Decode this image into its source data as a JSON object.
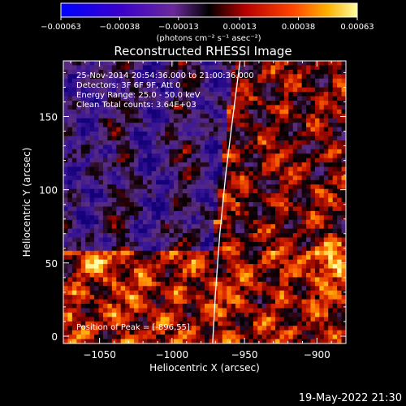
{
  "chart_data": {
    "type": "heatmap",
    "title": "Reconstructed RHESSI Image",
    "xlabel": "Heliocentric X (arcsec)",
    "ylabel": "Heliocentric Y (arcsec)",
    "xlim": [
      -1075,
      -880
    ],
    "ylim": [
      -5,
      188
    ],
    "xticks": [
      {
        "value": -1050,
        "label": "−1050"
      },
      {
        "value": -1000,
        "label": "−1000"
      },
      {
        "value": -950,
        "label": "−950"
      },
      {
        "value": -900,
        "label": "−900"
      }
    ],
    "yticks": [
      {
        "value": 0,
        "label": "0"
      },
      {
        "value": 50,
        "label": "50"
      },
      {
        "value": 100,
        "label": "100"
      },
      {
        "value": 150,
        "label": "150"
      }
    ],
    "colorbar": {
      "min": -0.00063,
      "max": 0.00063,
      "unit_label": "(photons cm⁻² s⁻¹ asec⁻²)",
      "ticks": [
        {
          "value": -0.00063,
          "label": "−0.00063"
        },
        {
          "value": -0.00038,
          "label": "−0.00038"
        },
        {
          "value": -0.00013,
          "label": "−0.00013"
        },
        {
          "value": 0.00013,
          "label": "0.00013"
        },
        {
          "value": 0.00038,
          "label": "0.00038"
        },
        {
          "value": 0.00063,
          "label": "0.00063"
        }
      ]
    },
    "annotations": [
      "25-Nov-2014 20:54:36.000 to 21:00:36.000",
      "Detectors: 3F 6F 9F, Att 0",
      "Energy Range: 25.0 - 50.0 keV",
      "Clean     Total counts: 3.64E+03"
    ],
    "peak_label": "Position of Peak = [-896,55]",
    "peak": {
      "x": -896,
      "y": 55
    },
    "limb_points": [
      [
        -953,
        188
      ],
      [
        -958,
        150
      ],
      [
        -963,
        110
      ],
      [
        -967,
        70
      ],
      [
        -970,
        30
      ],
      [
        -972,
        -5
      ]
    ],
    "timestamp": "19-May-2022 21:30"
  },
  "colors": {
    "background": "#000000",
    "text": "#ffffff"
  }
}
